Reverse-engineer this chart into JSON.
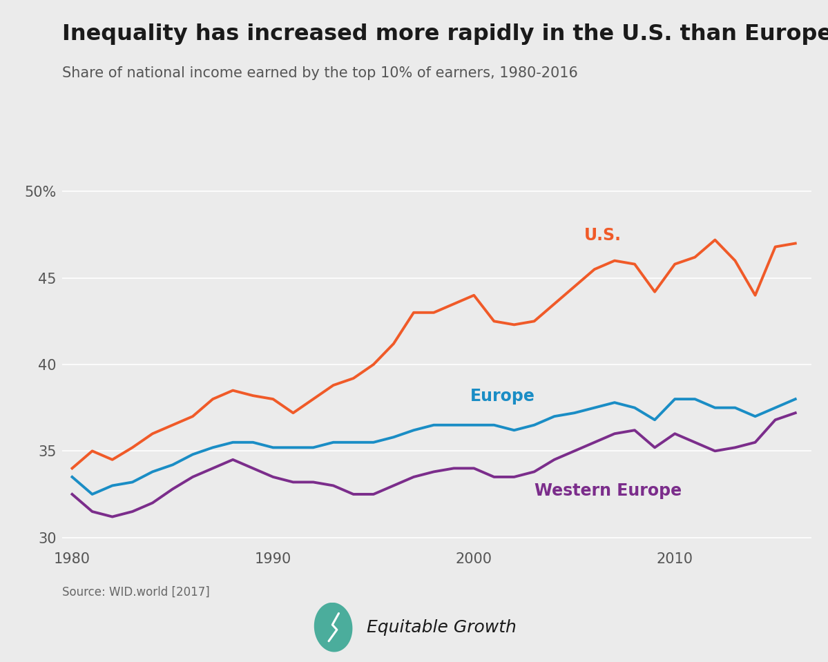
{
  "title": "Inequality has increased more rapidly in the U.S. than Europe",
  "subtitle": "Share of national income earned by the top 10% of earners, 1980-2016",
  "source": "Source: WID.world [2017]",
  "background_color": "#EBEBEB",
  "title_color": "#1a1a1a",
  "subtitle_color": "#555555",
  "source_color": "#666666",
  "grid_color": "#d0d0d0",
  "us_color": "#F05A28",
  "europe_color": "#1A8DC5",
  "western_europe_color": "#7B2D8B",
  "us_label": "U.S.",
  "europe_label": "Europe",
  "western_europe_label": "Western Europe",
  "years": [
    1980,
    1981,
    1982,
    1983,
    1984,
    1985,
    1986,
    1987,
    1988,
    1989,
    1990,
    1991,
    1992,
    1993,
    1994,
    1995,
    1996,
    1997,
    1998,
    1999,
    2000,
    2001,
    2002,
    2003,
    2004,
    2005,
    2006,
    2007,
    2008,
    2009,
    2010,
    2011,
    2012,
    2013,
    2014,
    2015,
    2016
  ],
  "us_values": [
    34.0,
    35.0,
    34.5,
    35.2,
    36.0,
    36.5,
    37.0,
    38.0,
    38.5,
    38.2,
    38.0,
    37.2,
    38.0,
    38.8,
    39.2,
    40.0,
    41.2,
    43.0,
    43.0,
    43.5,
    44.0,
    42.5,
    42.3,
    42.5,
    43.5,
    44.5,
    45.5,
    46.0,
    45.8,
    44.2,
    45.8,
    46.2,
    47.2,
    46.0,
    44.0,
    46.8,
    47.0
  ],
  "europe_values": [
    33.5,
    32.5,
    33.0,
    33.2,
    33.8,
    34.2,
    34.8,
    35.2,
    35.5,
    35.5,
    35.2,
    35.2,
    35.2,
    35.5,
    35.5,
    35.5,
    35.8,
    36.2,
    36.5,
    36.5,
    36.5,
    36.5,
    36.2,
    36.5,
    37.0,
    37.2,
    37.5,
    37.8,
    37.5,
    36.8,
    38.0,
    38.0,
    37.5,
    37.5,
    37.0,
    37.5,
    38.0
  ],
  "western_europe_values": [
    32.5,
    31.5,
    31.2,
    31.5,
    32.0,
    32.8,
    33.5,
    34.0,
    34.5,
    34.0,
    33.5,
    33.2,
    33.2,
    33.0,
    32.5,
    32.5,
    33.0,
    33.5,
    33.8,
    34.0,
    34.0,
    33.5,
    33.5,
    33.8,
    34.5,
    35.0,
    35.5,
    36.0,
    36.2,
    35.2,
    36.0,
    35.5,
    35.0,
    35.2,
    35.5,
    36.8,
    37.2
  ],
  "ylim": [
    29.5,
    51.5
  ],
  "yticks": [
    30,
    35,
    40,
    45,
    50
  ],
  "xlim": [
    1979.5,
    2016.8
  ],
  "xticks": [
    1980,
    1990,
    2000,
    2010
  ],
  "title_fontsize": 23,
  "subtitle_fontsize": 15,
  "label_fontsize": 17,
  "tick_fontsize": 15,
  "source_fontsize": 12,
  "line_width": 2.8,
  "logo_color": "#4BAD9C",
  "logo_text_color": "#1a1a1a",
  "logo_fontsize": 18
}
